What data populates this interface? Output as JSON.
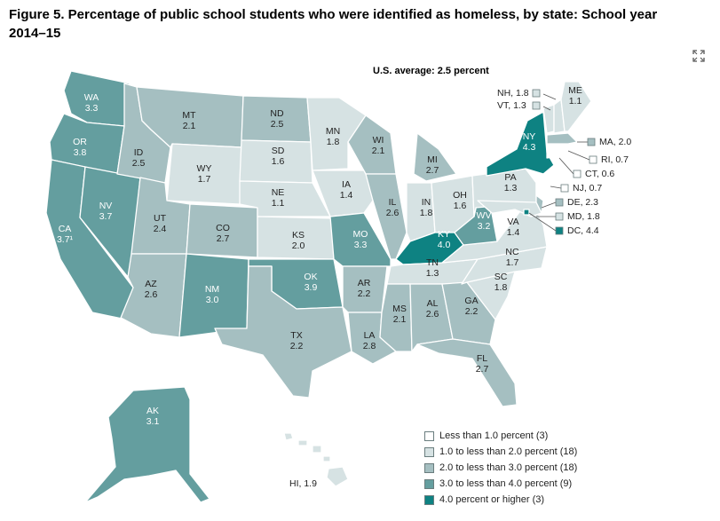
{
  "title": "Figure 5. Percentage of public school students who were identified as homeless, by state: School year 2014–15",
  "average_label": "U.S. average: 2.5 percent",
  "colors": {
    "c0": "#ffffff",
    "c1": "#d6e2e3",
    "c2": "#a5bfc1",
    "c3": "#649e9f",
    "c4": "#0e8282",
    "border": "#ffffff"
  },
  "legend": [
    {
      "label": "Less than 1.0 percent (3)",
      "color": "#ffffff"
    },
    {
      "label": "1.0 to less than 2.0 percent (18)",
      "color": "#d6e2e3"
    },
    {
      "label": "2.0 to less than 3.0 percent (18)",
      "color": "#a5bfc1"
    },
    {
      "label": "3.0 to less than 4.0 percent (9)",
      "color": "#649e9f"
    },
    {
      "label": "4.0 percent or higher (3)",
      "color": "#0e8282"
    }
  ],
  "states": {
    "WA": {
      "abbr": "WA",
      "value": "3.3"
    },
    "OR": {
      "abbr": "OR",
      "value": "3.8"
    },
    "CA": {
      "abbr": "CA",
      "value": "3.7¹"
    },
    "ID": {
      "abbr": "ID",
      "value": "2.5"
    },
    "NV": {
      "abbr": "NV",
      "value": "3.7"
    },
    "MT": {
      "abbr": "MT",
      "value": "2.1"
    },
    "WY": {
      "abbr": "WY",
      "value": "1.7"
    },
    "UT": {
      "abbr": "UT",
      "value": "2.4"
    },
    "AZ": {
      "abbr": "AZ",
      "value": "2.6"
    },
    "CO": {
      "abbr": "CO",
      "value": "2.7"
    },
    "NM": {
      "abbr": "NM",
      "value": "3.0"
    },
    "ND": {
      "abbr": "ND",
      "value": "2.5"
    },
    "SD": {
      "abbr": "SD",
      "value": "1.6"
    },
    "NE": {
      "abbr": "NE",
      "value": "1.1"
    },
    "KS": {
      "abbr": "KS",
      "value": "2.0"
    },
    "OK": {
      "abbr": "OK",
      "value": "3.9"
    },
    "TX": {
      "abbr": "TX",
      "value": "2.2"
    },
    "MN": {
      "abbr": "MN",
      "value": "1.8"
    },
    "IA": {
      "abbr": "IA",
      "value": "1.4"
    },
    "MO": {
      "abbr": "MO",
      "value": "3.3"
    },
    "AR": {
      "abbr": "AR",
      "value": "2.2"
    },
    "LA": {
      "abbr": "LA",
      "value": "2.8"
    },
    "WI": {
      "abbr": "WI",
      "value": "2.1"
    },
    "IL": {
      "abbr": "IL",
      "value": "2.6"
    },
    "MS": {
      "abbr": "MS",
      "value": "2.1"
    },
    "MI": {
      "abbr": "MI",
      "value": "2.7"
    },
    "IN": {
      "abbr": "IN",
      "value": "1.8"
    },
    "OH": {
      "abbr": "OH",
      "value": "1.6"
    },
    "KY": {
      "abbr": "KY",
      "value": "4.0"
    },
    "TN": {
      "abbr": "TN",
      "value": "1.3"
    },
    "AL": {
      "abbr": "AL",
      "value": "2.6"
    },
    "GA": {
      "abbr": "GA",
      "value": "2.2"
    },
    "FL": {
      "abbr": "FL",
      "value": "2.7"
    },
    "SC": {
      "abbr": "SC",
      "value": "1.8"
    },
    "NC": {
      "abbr": "NC",
      "value": "1.7"
    },
    "VA": {
      "abbr": "VA",
      "value": "1.4"
    },
    "WV": {
      "abbr": "WV",
      "value": "3.2"
    },
    "PA": {
      "abbr": "PA",
      "value": "1.3"
    },
    "NY": {
      "abbr": "NY",
      "value": "4.3"
    },
    "ME": {
      "abbr": "ME",
      "value": "1.1"
    },
    "AK": {
      "abbr": "AK",
      "value": "3.1"
    }
  },
  "callouts": {
    "NH": "NH, 1.8",
    "VT": "VT, 1.3",
    "MA": "MA, 2.0",
    "RI": "RI, 0.7",
    "CT": "CT, 0.6",
    "NJ": "NJ, 0.7",
    "DE": "DE, 2.3",
    "MD": "MD, 1.8",
    "DC": "DC, 4.4",
    "HI": "HI, 1.9"
  }
}
